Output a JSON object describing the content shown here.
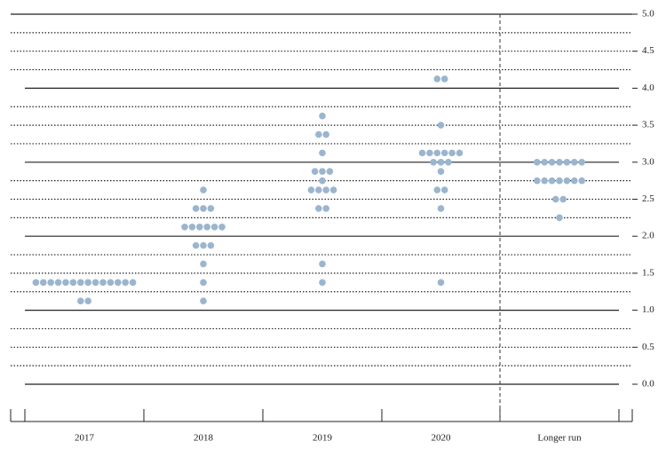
{
  "chart_data": {
    "type": "dot_plot",
    "color": "#9bb5cf",
    "ylim": [
      0,
      5
    ],
    "yticks": [
      {
        "value": 0,
        "label": "0.0"
      },
      0.5,
      {
        "value": 1,
        "label": "1.0"
      },
      1.5,
      {
        "value": 2,
        "label": "2.0"
      },
      2.5,
      {
        "value": 3,
        "label": "3.0"
      },
      3.5,
      {
        "value": 4,
        "label": "4.0"
      },
      4.5,
      {
        "value": 5,
        "label": "5.0"
      }
    ],
    "minor_gridlines": [
      0.25,
      0.75,
      1.25,
      1.75,
      2.25,
      2.75,
      3.25,
      3.75,
      4.25,
      4.75
    ],
    "categories": [
      "2017",
      "2018",
      "2019",
      "2020",
      "Longer run"
    ],
    "groups": [
      [
        {
          "value": 1.375,
          "count": 14
        },
        {
          "value": 1.125,
          "count": 2
        }
      ],
      [
        {
          "value": 2.625,
          "count": 1
        },
        {
          "value": 2.375,
          "count": 3
        },
        {
          "value": 2.125,
          "count": 6
        },
        {
          "value": 1.875,
          "count": 3
        },
        {
          "value": 1.625,
          "count": 1
        },
        {
          "value": 1.375,
          "count": 1
        },
        {
          "value": 1.125,
          "count": 1
        }
      ],
      [
        {
          "value": 3.625,
          "count": 1
        },
        {
          "value": 3.375,
          "count": 2
        },
        {
          "value": 3.125,
          "count": 1
        },
        {
          "value": 2.875,
          "count": 3
        },
        {
          "value": 2.75,
          "count": 1
        },
        {
          "value": 2.625,
          "count": 4
        },
        {
          "value": 2.375,
          "count": 2
        },
        {
          "value": 1.625,
          "count": 1
        },
        {
          "value": 1.375,
          "count": 1
        }
      ],
      [
        {
          "value": 4.125,
          "count": 2
        },
        {
          "value": 3.5,
          "count": 1
        },
        {
          "value": 3.125,
          "count": 6
        },
        {
          "value": 3,
          "count": 3
        },
        {
          "value": 2.875,
          "count": 1
        },
        {
          "value": 2.625,
          "count": 2
        },
        {
          "value": 2.375,
          "count": 1
        },
        {
          "value": 1.375,
          "count": 1
        }
      ],
      [
        {
          "value": 3,
          "count": 7
        },
        {
          "value": 2.75,
          "count": 7
        },
        {
          "value": 2.5,
          "count": 2
        },
        {
          "value": 2.25,
          "count": 1
        }
      ]
    ]
  }
}
